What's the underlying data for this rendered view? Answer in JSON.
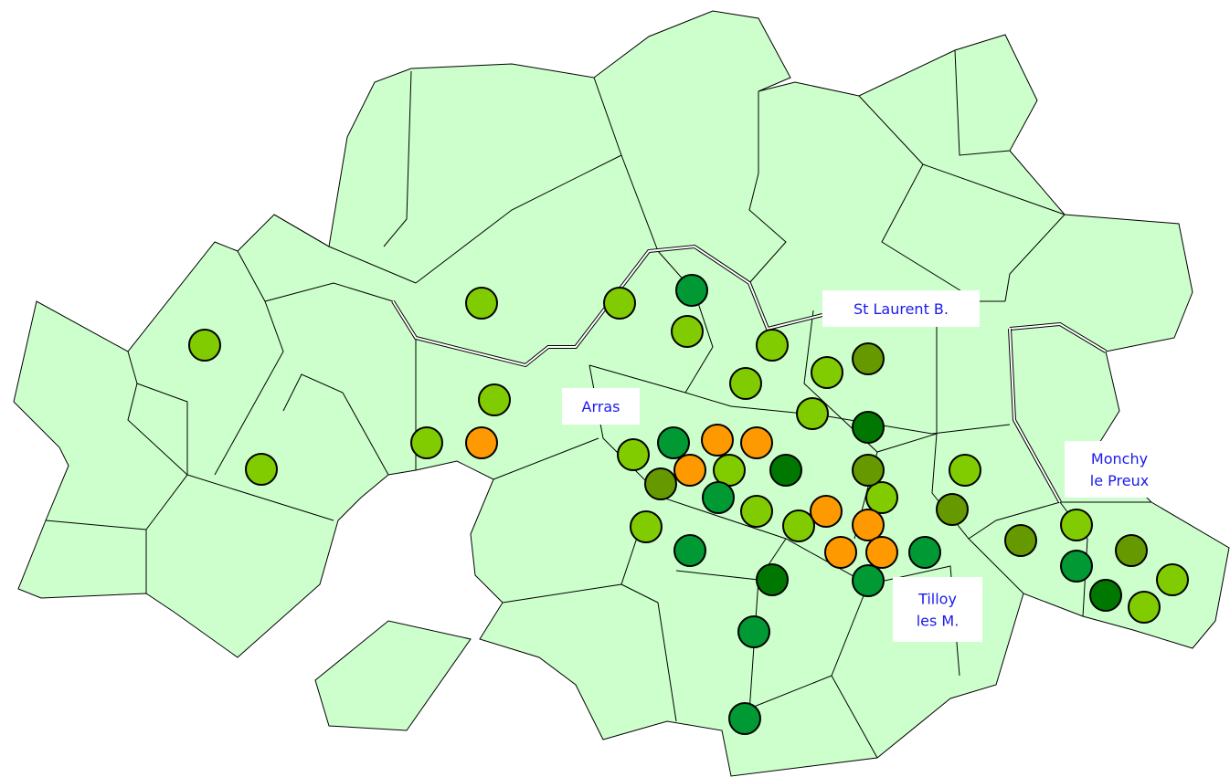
{
  "labels": [
    {
      "lines": [
        "St Laurent B."
      ]
    },
    {
      "lines": [
        "Arras"
      ]
    },
    {
      "lines": [
        "Monchy",
        "le Preux"
      ]
    },
    {
      "lines": [
        "Tilloy",
        "les M."
      ]
    }
  ]
}
